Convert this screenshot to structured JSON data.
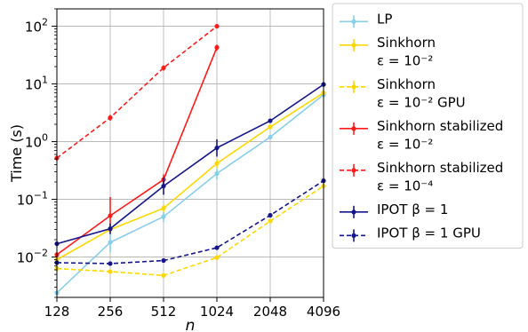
{
  "chart_data": {
    "type": "line",
    "xlabel": "n",
    "ylabel": "Time (s)",
    "xscale": "log2",
    "yscale": "log",
    "x_ticks": [
      "128",
      "256",
      "512",
      "1024",
      "2048",
      "4096"
    ],
    "xlim": [
      128,
      4096
    ],
    "ylim": [
      0.002,
      200
    ],
    "y_ticks": [
      {
        "value": 0.01,
        "mantissa": "10",
        "exp": "−2"
      },
      {
        "value": 0.1,
        "mantissa": "10",
        "exp": "−1"
      },
      {
        "value": 1,
        "mantissa": "10",
        "exp": "0"
      },
      {
        "value": 10,
        "mantissa": "10",
        "exp": "1"
      },
      {
        "value": 100,
        "mantissa": "10",
        "exp": "2"
      }
    ],
    "grid": true,
    "legend_position": "outside right",
    "series": [
      {
        "name": "LP",
        "label_lines": [
          "LP"
        ],
        "color": "#87ceeb",
        "dashed": false,
        "x": [
          128,
          256,
          512,
          1024,
          2048,
          4096
        ],
        "y": [
          0.0024,
          0.018,
          0.05,
          0.28,
          1.2,
          6.5
        ],
        "err": [
          [
            0.0024,
            0.0024
          ],
          [
            0.012,
            0.025
          ],
          [
            0.04,
            0.06
          ],
          [
            0.22,
            0.34
          ],
          [
            1.1,
            1.3
          ],
          [
            6.2,
            6.8
          ]
        ]
      },
      {
        "name": "Sinkhorn ε = 10⁻²",
        "label_lines": [
          "Sinkhorn",
          "ε = 10⁻²"
        ],
        "color": "#ffd700",
        "dashed": false,
        "x": [
          128,
          256,
          512,
          1024,
          2048,
          4096
        ],
        "y": [
          0.009,
          0.03,
          0.07,
          0.42,
          1.8,
          7.0
        ],
        "err": [
          [
            0.009,
            0.009
          ],
          [
            0.025,
            0.035
          ],
          [
            0.06,
            0.08
          ],
          [
            0.35,
            0.5
          ],
          [
            1.7,
            1.9
          ],
          [
            6.7,
            7.3
          ]
        ]
      },
      {
        "name": "Sinkhorn ε = 10⁻² GPU",
        "label_lines": [
          "Sinkhorn",
          "ε = 10⁻² GPU"
        ],
        "color": "#ffd700",
        "dashed": true,
        "x": [
          128,
          256,
          512,
          1024,
          2048,
          4096
        ],
        "y": [
          0.0063,
          0.0056,
          0.0048,
          0.0098,
          0.042,
          0.17
        ],
        "err": [
          [
            0.0063,
            0.0063
          ],
          [
            0.0056,
            0.0056
          ],
          [
            0.0048,
            0.0048
          ],
          [
            0.0098,
            0.0098
          ],
          [
            0.042,
            0.042
          ],
          [
            0.17,
            0.17
          ]
        ]
      },
      {
        "name": "Sinkhorn stabilized ε = 10⁻²",
        "label_lines": [
          "Sinkhorn stabilized",
          "ε = 10⁻²"
        ],
        "color": "#ff1a1a",
        "dashed": false,
        "x": [
          128,
          256,
          512,
          1024
        ],
        "y": [
          0.011,
          0.052,
          0.22,
          43
        ],
        "err": [
          [
            0.011,
            0.011
          ],
          [
            0.035,
            0.11
          ],
          [
            0.18,
            0.27
          ],
          [
            38,
            48
          ]
        ]
      },
      {
        "name": "Sinkhorn stabilized ε = 10⁻⁴",
        "label_lines": [
          "Sinkhorn stabilized",
          "ε = 10⁻⁴"
        ],
        "color": "#ff1a1a",
        "dashed": true,
        "x": [
          128,
          256,
          512,
          1024
        ],
        "y": [
          0.52,
          2.6,
          19,
          100
        ],
        "err": [
          [
            0.52,
            0.52
          ],
          [
            2.3,
            2.9
          ],
          [
            17,
            21
          ],
          [
            95,
            105
          ]
        ]
      },
      {
        "name": "IPOT β = 1",
        "label_lines": [
          "IPOT β = 1"
        ],
        "color": "#15158c",
        "dashed": false,
        "x": [
          128,
          256,
          512,
          1024,
          2048,
          4096
        ],
        "y": [
          0.017,
          0.031,
          0.17,
          0.78,
          2.3,
          9.8
        ],
        "err": [
          [
            0.017,
            0.017
          ],
          [
            0.025,
            0.038
          ],
          [
            0.12,
            0.24
          ],
          [
            0.55,
            1.1
          ],
          [
            2.2,
            2.4
          ],
          [
            9.5,
            10.1
          ]
        ]
      },
      {
        "name": "IPOT β = 1 GPU",
        "label_lines": [
          "IPOT β = 1 GPU"
        ],
        "color": "#15158c",
        "dashed": true,
        "x": [
          128,
          256,
          512,
          1024,
          2048,
          4096
        ],
        "y": [
          0.008,
          0.0077,
          0.0087,
          0.0145,
          0.053,
          0.21
        ],
        "err": [
          [
            0.008,
            0.008
          ],
          [
            0.0077,
            0.0077
          ],
          [
            0.0087,
            0.0087
          ],
          [
            0.0145,
            0.0145
          ],
          [
            0.053,
            0.053
          ],
          [
            0.21,
            0.21
          ]
        ]
      }
    ]
  }
}
